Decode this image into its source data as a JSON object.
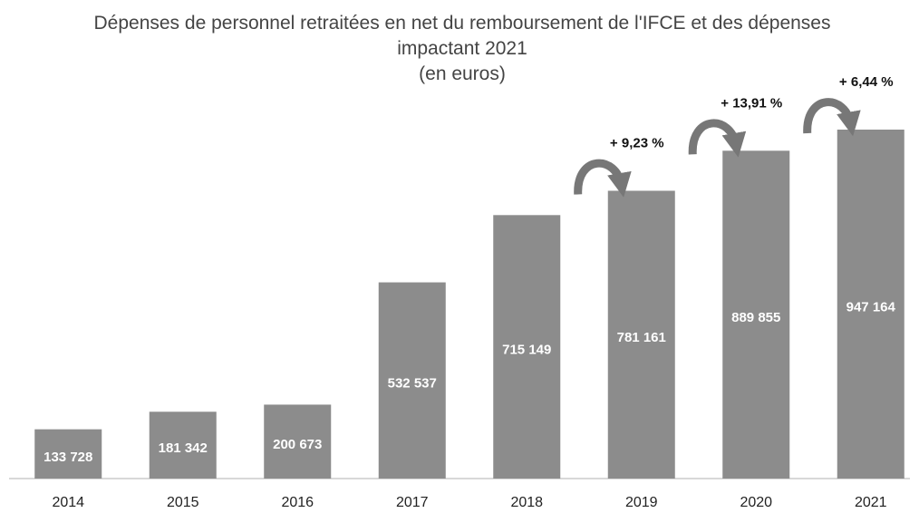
{
  "chart_data": {
    "type": "bar",
    "title": "Dépenses de personnel retraitées en net du remboursement de l'IFCE et des dépenses impactant 2021",
    "subtitle": "(en euros)",
    "categories": [
      "2014",
      "2015",
      "2016",
      "2017",
      "2018",
      "2019",
      "2020",
      "2021"
    ],
    "values": [
      133728,
      181342,
      200673,
      532537,
      715149,
      781161,
      889855,
      947164
    ],
    "value_labels": [
      "133 728",
      "181 342",
      "200 673",
      "532 537",
      "715 149",
      "781 161",
      "889 855",
      "947 164"
    ],
    "annotations": [
      null,
      null,
      null,
      null,
      null,
      "+ 9,23 %",
      "+ 13,91 %",
      "+ 6,44 %"
    ],
    "color": "#8c8c8c"
  }
}
